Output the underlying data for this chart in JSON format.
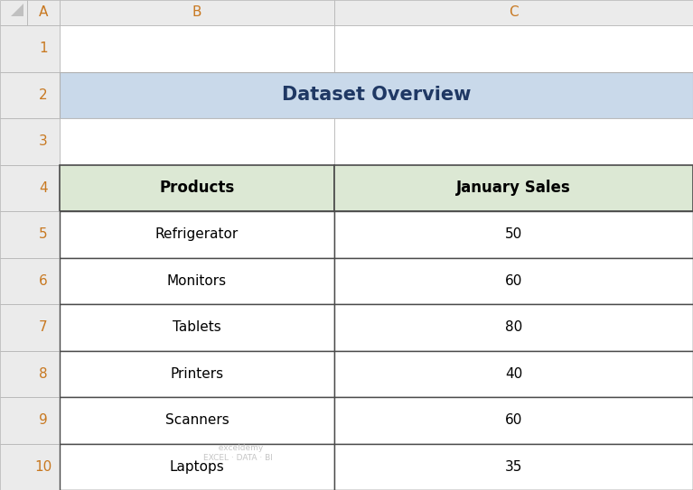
{
  "title": "Dataset Overview",
  "title_bg_color": "#c9d9ea",
  "header_bg_color": "#dce8d4",
  "cell_bg_color": "#ffffff",
  "grid_line_color": "#b0b0b0",
  "col_header_bg": "#ebebeb",
  "row_header_bg": "#ebebeb",
  "col_header_text": "#c87820",
  "row_numbers": [
    "1",
    "2",
    "3",
    "4",
    "5",
    "6",
    "7",
    "8",
    "9",
    "10"
  ],
  "col_labels": [
    "A",
    "B",
    "C"
  ],
  "products": [
    "Refrigerator",
    "Monitors",
    "Tablets",
    "Printers",
    "Scanners",
    "Laptops"
  ],
  "sales": [
    "50",
    "60",
    "80",
    "40",
    "60",
    "35"
  ],
  "header_cols": [
    "Products",
    "January Sales"
  ],
  "fig_bg_color": "#ffffff",
  "outer_border_color": "#4a4a4a",
  "title_font_size": 15,
  "header_font_size": 12,
  "data_font_size": 11,
  "row_label_font_size": 11,
  "col_label_font_size": 11,
  "title_color": "#1f3864"
}
